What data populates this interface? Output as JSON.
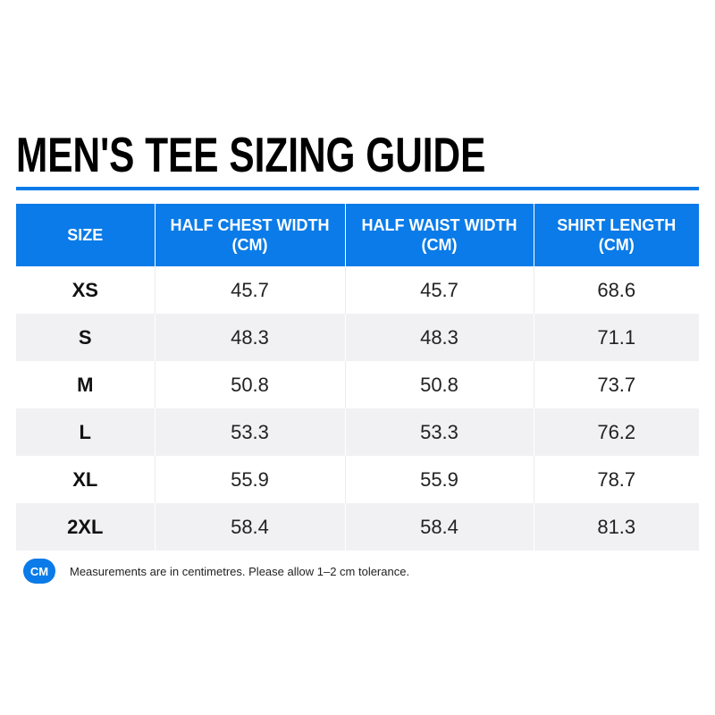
{
  "title": "MEN'S TEE SIZING GUIDE",
  "colors": {
    "accent": "#0a7be8",
    "row_alt": "#f1f1f3"
  },
  "table": {
    "headers": [
      {
        "line1": "SIZE",
        "line2": ""
      },
      {
        "line1": "HALF CHEST WIDTH",
        "line2": "(CM)"
      },
      {
        "line1": "HALF WAIST WIDTH",
        "line2": "(CM)"
      },
      {
        "line1": "SHIRT LENGTH",
        "line2": "(CM)"
      }
    ],
    "rows": [
      {
        "size": "XS",
        "chest": "45.7",
        "waist": "45.7",
        "length": "68.6"
      },
      {
        "size": "S",
        "chest": "48.3",
        "waist": "48.3",
        "length": "71.1"
      },
      {
        "size": "M",
        "chest": "50.8",
        "waist": "50.8",
        "length": "73.7"
      },
      {
        "size": "L",
        "chest": "53.3",
        "waist": "53.3",
        "length": "76.2"
      },
      {
        "size": "XL",
        "chest": "55.9",
        "waist": "55.9",
        "length": "78.7"
      },
      {
        "size": "2XL",
        "chest": "58.4",
        "waist": "58.4",
        "length": "81.3"
      }
    ]
  },
  "note": {
    "badge": "CM",
    "text": "Measurements are in centimetres. Please allow 1–2 cm tolerance."
  }
}
